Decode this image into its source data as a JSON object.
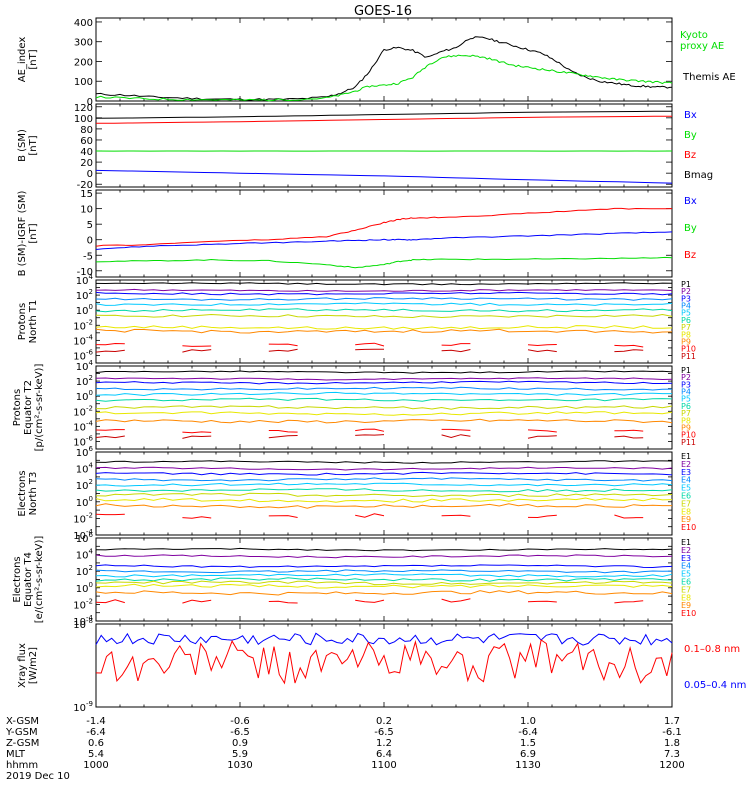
{
  "title": "GOES-16",
  "colors": {
    "black": "#000000",
    "blue": "#0000ff",
    "green": "#00dd00",
    "red": "#ff0000",
    "p_colors": [
      "#000000",
      "#7f00a0",
      "#0000ff",
      "#0088ff",
      "#00c8ff",
      "#00d8a8",
      "#c8d800",
      "#e8e800",
      "#ff8800",
      "#ff0000",
      "#c80000"
    ],
    "e_colors": [
      "#000000",
      "#7f00a0",
      "#0000ff",
      "#0088ff",
      "#00c8ff",
      "#00d8a8",
      "#c8d800",
      "#e8e800",
      "#ff8800",
      "#ff0000"
    ]
  },
  "chart_data": [
    {
      "type": "line",
      "id": "ae",
      "ylabel": "AE_index\n[nT]",
      "ylim": [
        0,
        420
      ],
      "yticks": [
        "0",
        "100",
        "200",
        "300",
        "400"
      ],
      "x": [
        0,
        0.1,
        0.2,
        0.3,
        0.4,
        0.5,
        0.6,
        0.7,
        0.8,
        0.85,
        0.9,
        0.95,
        1.0,
        1.05,
        1.1,
        1.15,
        1.2,
        1.25,
        1.3,
        1.35,
        1.4,
        1.45,
        1.5,
        1.55,
        1.6,
        1.65,
        1.7,
        1.75,
        1.8,
        1.85,
        1.9,
        1.95,
        2.0
      ],
      "series": [
        {
          "name": "Themis AE",
          "color": "black",
          "values": [
            35,
            30,
            20,
            15,
            10,
            8,
            8,
            10,
            20,
            40,
            70,
            150,
            260,
            270,
            255,
            220,
            250,
            270,
            320,
            320,
            300,
            280,
            260,
            240,
            200,
            150,
            120,
            100,
            90,
            80,
            75,
            70,
            70
          ]
        },
        {
          "name": "Kyoto proxy AE",
          "color": "green",
          "values": [
            20,
            15,
            10,
            8,
            6,
            5,
            5,
            8,
            15,
            30,
            50,
            75,
            80,
            90,
            120,
            180,
            220,
            230,
            230,
            220,
            200,
            180,
            170,
            160,
            150,
            140,
            130,
            120,
            110,
            105,
            100,
            95,
            90
          ]
        }
      ],
      "legend": [
        "Kyoto\nproxy AE",
        "Themis AE"
      ]
    },
    {
      "type": "line",
      "id": "bsm",
      "ylabel": "B (SM)\n[nT]",
      "ylim": [
        -25,
        125
      ],
      "yticks": [
        "-20",
        "0",
        "20",
        "40",
        "60",
        "80",
        "100",
        "120"
      ],
      "x": [
        0,
        0.5,
        1.0,
        1.5,
        2.0
      ],
      "series": [
        {
          "name": "Bx",
          "color": "blue",
          "values": [
            5,
            0,
            -5,
            -12,
            -18
          ]
        },
        {
          "name": "By",
          "color": "green",
          "values": [
            40,
            40,
            40,
            40,
            40
          ]
        },
        {
          "name": "Bz",
          "color": "red",
          "values": [
            90,
            93,
            97,
            101,
            103
          ]
        },
        {
          "name": "Bmag",
          "color": "black",
          "values": [
            99,
            102,
            106,
            110,
            112
          ]
        }
      ],
      "legend": [
        "Bx",
        "By",
        "Bz",
        "Bmag"
      ]
    },
    {
      "type": "line",
      "id": "bigrf",
      "ylabel": "B (SM)-IGRF (SM)\n[nT]",
      "ylim": [
        -12,
        16
      ],
      "yticks": [
        "-10",
        "-5",
        "0",
        "5",
        "10",
        "15"
      ],
      "x": [
        0,
        0.2,
        0.4,
        0.6,
        0.8,
        0.9,
        1.0,
        1.05,
        1.1,
        1.2,
        1.4,
        1.6,
        1.8,
        2.0
      ],
      "series": [
        {
          "name": "Bx",
          "color": "blue",
          "values": [
            -3,
            -2,
            -1.5,
            -1,
            -0.5,
            -0.2,
            0,
            0,
            0,
            0.5,
            1,
            1.5,
            2,
            2.5
          ]
        },
        {
          "name": "By",
          "color": "green",
          "values": [
            -7,
            -6.8,
            -6.5,
            -6.8,
            -8,
            -9,
            -8,
            -7,
            -6.5,
            -6.3,
            -6.3,
            -6.2,
            -6,
            -5.8
          ]
        },
        {
          "name": "Bz",
          "color": "red",
          "values": [
            -2,
            -1.5,
            -0.5,
            0,
            1,
            3,
            5.5,
            6.5,
            7,
            7.2,
            8,
            9,
            10,
            10
          ]
        }
      ],
      "legend": [
        "Bx",
        "By",
        "Bz"
      ]
    },
    {
      "type": "line",
      "id": "pt1",
      "ylabel": "Protons\nNorth T1",
      "ylim_log": [
        -7,
        4
      ],
      "ytick_exps": [
        4,
        2,
        0,
        -2,
        -4,
        -6
      ],
      "levels": [
        3.5,
        2.6,
        2.2,
        1.5,
        0.8,
        0,
        -0.8,
        -2.3,
        -2.8,
        -4.6,
        -5.3
      ],
      "legend": [
        "P1",
        "P2",
        "P3",
        "P4",
        "P5",
        "P6",
        "P7",
        "P8",
        "P9",
        "P10",
        "P11"
      ]
    },
    {
      "type": "line",
      "id": "pt2",
      "ylabel": "Protons\nEquator T2\n[p/(cm²-s-sr-keV)]",
      "ylim_log": [
        -7,
        4
      ],
      "ytick_exps": [
        4,
        2,
        0,
        -2,
        -4,
        -6
      ],
      "levels": [
        3.2,
        2.3,
        1.8,
        1,
        0.3,
        -0.5,
        -1.5,
        -2.3,
        -3.3,
        -4.6,
        -5.3
      ],
      "legend": [
        "P1",
        "P2",
        "P3",
        "P4",
        "P5",
        "P6",
        "P7",
        "P8",
        "P9",
        "P10",
        "P11"
      ]
    },
    {
      "type": "line",
      "id": "et3",
      "ylabel": "Electrons\nNorth T3",
      "ylim_log": [
        -4,
        6
      ],
      "ytick_exps": [
        6,
        4,
        2,
        0,
        -2,
        -4
      ],
      "levels": [
        4.8,
        4,
        3.4,
        2.7,
        2.1,
        1.4,
        0.8,
        0.2,
        -0.5,
        -1.7
      ],
      "legend": [
        "E1",
        "E2",
        "E3",
        "E4",
        "E5",
        "E6",
        "E7",
        "E8",
        "E9",
        "E10"
      ]
    },
    {
      "type": "line",
      "id": "et4",
      "ylabel": "Electrons\nEquator T4\n[e/(cm²-s-sr-keV)]",
      "ylim_log": [
        -4,
        6
      ],
      "ytick_exps": [
        6,
        4,
        2,
        0,
        -2,
        -4
      ],
      "levels": [
        4.6,
        3.8,
        2.6,
        2,
        1.5,
        1,
        0.6,
        0.2,
        -0.6,
        -1.6
      ],
      "legend": [
        "E1",
        "E2",
        "E3",
        "E4",
        "E5",
        "E6",
        "E7",
        "E8",
        "E9",
        "E10"
      ]
    },
    {
      "type": "line",
      "id": "xray",
      "ylabel": "Xray flux\n[W/m2]",
      "ylim_log": [
        -9,
        -8
      ],
      "ytick_exps": [
        -8,
        -9
      ],
      "series": [
        {
          "name": "0.1–0.8 nm",
          "color": "red"
        },
        {
          "name": "0.05–0.4 nm",
          "color": "blue"
        }
      ],
      "legend": [
        "0.1–0.8 nm",
        "0.05–0.4 nm"
      ]
    }
  ],
  "x_axis": {
    "row_labels": [
      "X-GSM",
      "Y-GSM",
      "Z-GSM",
      "MLT",
      "hhmm"
    ],
    "date": "2019 Dec 10",
    "ticks": [
      {
        "values": [
          "-1.4",
          "-6.4",
          "0.6",
          "5.4",
          "1000"
        ]
      },
      {
        "values": [
          "-0.6",
          "-6.5",
          "0.9",
          "5.9",
          "1030"
        ]
      },
      {
        "values": [
          "0.2",
          "-6.5",
          "1.2",
          "6.4",
          "1100"
        ]
      },
      {
        "values": [
          "1.0",
          "-6.4",
          "1.5",
          "6.9",
          "1130"
        ]
      },
      {
        "values": [
          "1.7",
          "-6.1",
          "1.8",
          "7.3",
          "1200"
        ]
      }
    ]
  }
}
